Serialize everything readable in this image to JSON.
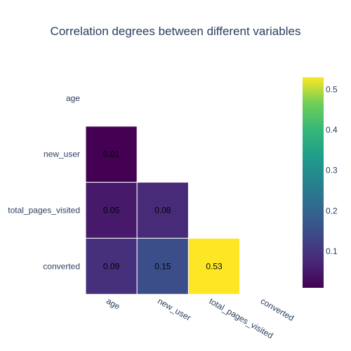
{
  "chart_data": {
    "type": "heatmap",
    "title": "Correlation degrees between different variables",
    "x_categories": [
      "age",
      "new_user",
      "total_pages_visited",
      "converted"
    ],
    "y_categories": [
      "age",
      "new_user",
      "total_pages_visited",
      "converted"
    ],
    "cells": [
      {
        "row": "new_user",
        "col": "age",
        "value": 0.01,
        "label": "0.01"
      },
      {
        "row": "total_pages_visited",
        "col": "age",
        "value": 0.05,
        "label": "0.05"
      },
      {
        "row": "total_pages_visited",
        "col": "new_user",
        "value": 0.08,
        "label": "0.08"
      },
      {
        "row": "converted",
        "col": "age",
        "value": 0.09,
        "label": "0.09"
      },
      {
        "row": "converted",
        "col": "new_user",
        "value": 0.15,
        "label": "0.15"
      },
      {
        "row": "converted",
        "col": "total_pages_visited",
        "value": 0.53,
        "label": "0.53"
      }
    ],
    "colorscale": "viridis",
    "colorbar": {
      "zmin": 0.01,
      "zmax": 0.53,
      "ticks": [
        0.1,
        0.2,
        0.3,
        0.4,
        0.5
      ],
      "tick_labels": [
        "0.1",
        "0.2",
        "0.3",
        "0.4",
        "0.5"
      ]
    },
    "grid": false
  }
}
